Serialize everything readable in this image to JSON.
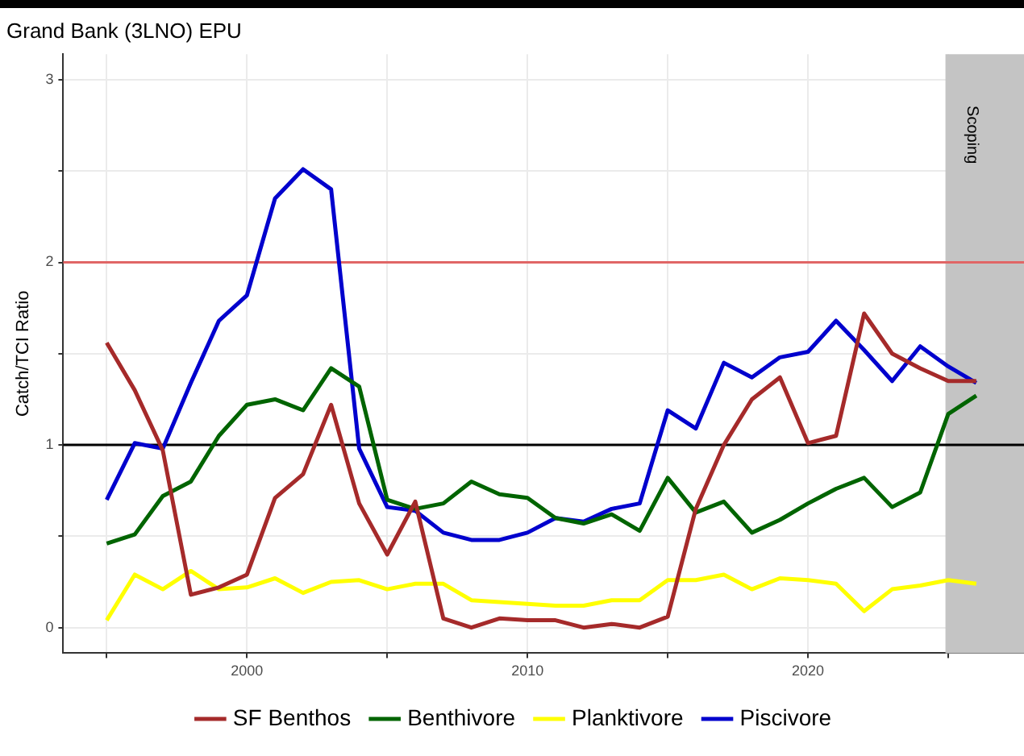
{
  "chart_data": {
    "type": "line",
    "title": "Grand Bank (3LNO) EPU",
    "ylabel": "Catch/TCI Ratio",
    "x": [
      1995,
      1996,
      1997,
      1998,
      1999,
      2000,
      2001,
      2002,
      2003,
      2004,
      2005,
      2006,
      2007,
      2008,
      2009,
      2010,
      2011,
      2012,
      2013,
      2014,
      2015,
      2016,
      2017,
      2018,
      2019,
      2020,
      2021,
      2022,
      2023,
      2024,
      2025,
      2026
    ],
    "series": [
      {
        "name": "SF Benthos",
        "color": "#a52a2a",
        "values": [
          1.56,
          1.3,
          0.97,
          0.18,
          0.22,
          0.29,
          0.71,
          0.84,
          1.22,
          0.68,
          0.4,
          0.69,
          0.05,
          0.0,
          0.05,
          0.04,
          0.04,
          0.0,
          0.02,
          0.0,
          0.06,
          0.65,
          1.0,
          1.25,
          1.37,
          1.01,
          1.05,
          1.72,
          1.5,
          1.42,
          1.35,
          1.35
        ]
      },
      {
        "name": "Benthivore",
        "color": "#006400",
        "values": [
          0.46,
          0.51,
          0.72,
          0.8,
          1.05,
          1.22,
          1.25,
          1.19,
          1.42,
          1.32,
          0.7,
          0.65,
          0.68,
          0.8,
          0.73,
          0.71,
          0.6,
          0.57,
          0.62,
          0.53,
          0.82,
          0.63,
          0.69,
          0.52,
          0.59,
          0.68,
          0.76,
          0.82,
          0.66,
          0.74,
          1.17,
          1.27
        ]
      },
      {
        "name": "Planktivore",
        "color": "#ffff00",
        "values": [
          0.04,
          0.29,
          0.21,
          0.31,
          0.21,
          0.22,
          0.27,
          0.19,
          0.25,
          0.26,
          0.21,
          0.24,
          0.24,
          0.15,
          0.14,
          0.13,
          0.12,
          0.12,
          0.15,
          0.15,
          0.26,
          0.26,
          0.29,
          0.21,
          0.27,
          0.26,
          0.24,
          0.09,
          0.21,
          0.23,
          0.26,
          0.24
        ]
      },
      {
        "name": "Piscivore",
        "color": "#0000cd",
        "values": [
          0.7,
          1.01,
          0.98,
          1.34,
          1.68,
          1.82,
          2.35,
          2.51,
          2.4,
          0.98,
          0.66,
          0.64,
          0.52,
          0.48,
          0.48,
          0.52,
          0.6,
          0.58,
          0.65,
          0.68,
          1.19,
          1.09,
          1.45,
          1.37,
          1.48,
          1.51,
          1.68,
          1.52,
          1.35,
          1.54,
          1.43,
          1.34
        ]
      }
    ],
    "xlim": [
      1993.45,
      2027.7
    ],
    "xticks": [
      {
        "value": 1995,
        "label": null
      },
      2000,
      {
        "value": 2005,
        "label": null
      },
      2010,
      {
        "value": 2015,
        "label": null
      },
      2020,
      {
        "value": 2025,
        "label": null
      }
    ],
    "ylim": [
      -0.14,
      3.14
    ],
    "yticks": [
      0,
      {
        "value": 0.5,
        "label": null
      },
      1,
      {
        "value": 1.5,
        "label": null
      },
      2,
      {
        "value": 2.5,
        "label": null
      },
      3
    ],
    "ref_lines": [
      {
        "axis": "y",
        "value": 2,
        "color": "#e06666"
      },
      {
        "axis": "y",
        "value": 1,
        "color": "#000000"
      }
    ],
    "bands": [
      {
        "axis": "x",
        "from": 2024.9,
        "to": 2027.7,
        "label": "Scoping",
        "color": "#c4c4c4"
      }
    ],
    "grid": true,
    "legend": "bottom",
    "marker": "none",
    "line_style": "solid"
  }
}
